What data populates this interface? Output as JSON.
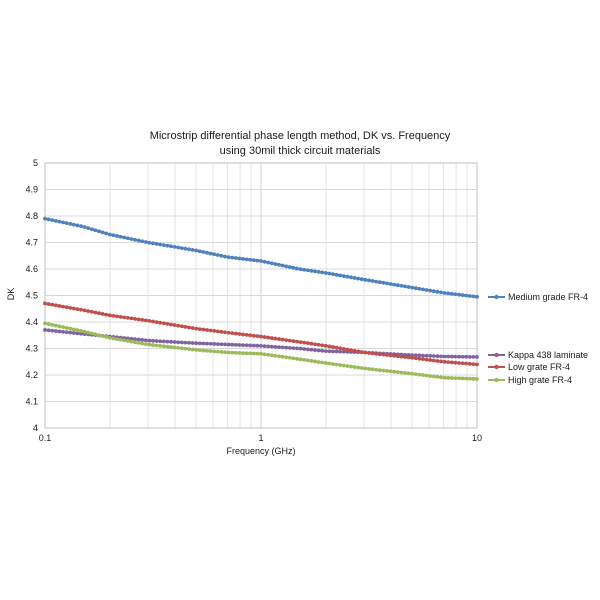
{
  "chart_data": {
    "type": "line",
    "title": "Microstrip differential phase length method, DK vs. Frequency",
    "subtitle": "using 30mil thick circuit materials",
    "xlabel": "Frequency (GHz)",
    "ylabel": "DK",
    "xscale": "log",
    "xlim": [
      0.1,
      10
    ],
    "ylim": [
      4,
      5
    ],
    "xticks": [
      "0.1",
      "1",
      "10"
    ],
    "yticks": [
      "4",
      "4.1",
      "4.2",
      "4.3",
      "4.4",
      "4.5",
      "4.6",
      "4.7",
      "4.8",
      "4.9",
      "5"
    ],
    "grid": true,
    "legend_position": "right",
    "series": [
      {
        "name": "Medium grade FR-4",
        "color": "#4f81bd",
        "x": [
          0.1,
          0.15,
          0.2,
          0.3,
          0.5,
          0.7,
          1,
          1.5,
          2,
          3,
          5,
          7,
          10
        ],
        "y": [
          4.79,
          4.76,
          4.73,
          4.7,
          4.67,
          4.645,
          4.63,
          4.6,
          4.585,
          4.56,
          4.53,
          4.51,
          4.495
        ]
      },
      {
        "name": "Kappa 438 laminate",
        "color": "#8064a2",
        "x": [
          0.1,
          0.15,
          0.2,
          0.3,
          0.5,
          0.7,
          1,
          1.5,
          2,
          3,
          5,
          7,
          10
        ],
        "y": [
          4.37,
          4.355,
          4.345,
          4.33,
          4.32,
          4.315,
          4.31,
          4.3,
          4.29,
          4.285,
          4.275,
          4.27,
          4.268
        ]
      },
      {
        "name": "Low grate FR-4",
        "color": "#c0504d",
        "x": [
          0.1,
          0.15,
          0.2,
          0.3,
          0.5,
          0.7,
          1,
          1.5,
          2,
          3,
          5,
          7,
          10
        ],
        "y": [
          4.47,
          4.445,
          4.425,
          4.405,
          4.375,
          4.36,
          4.345,
          4.325,
          4.31,
          4.285,
          4.265,
          4.25,
          4.24
        ]
      },
      {
        "name": "High grate FR-4",
        "color": "#9bbb59",
        "x": [
          0.1,
          0.15,
          0.2,
          0.3,
          0.5,
          0.7,
          1,
          1.5,
          2,
          3,
          5,
          7,
          10
        ],
        "y": [
          4.395,
          4.365,
          4.34,
          4.315,
          4.295,
          4.285,
          4.28,
          4.26,
          4.245,
          4.225,
          4.205,
          4.19,
          4.185
        ]
      }
    ]
  }
}
